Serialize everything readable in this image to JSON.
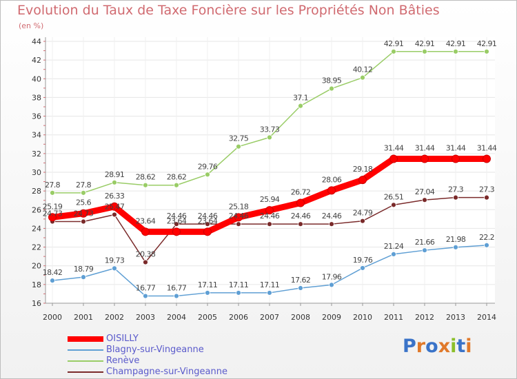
{
  "title": "Evolution du Taux de Taxe Foncière sur les Propriétés Non Bâties",
  "subtitle": "(en %)",
  "logo": {
    "text": "Proxiti",
    "letter_colors": [
      "#3a73c8",
      "#e0792a",
      "#3a73c8",
      "#e0792a",
      "#8bbf2a",
      "#3a73c8",
      "#e0792a"
    ]
  },
  "chart_data": {
    "type": "line",
    "x": [
      "2000",
      "2001",
      "2002",
      "2003",
      "2004",
      "2005",
      "2006",
      "2007",
      "2008",
      "2009",
      "2010",
      "2011",
      "2012",
      "2013",
      "2014"
    ],
    "ylim": [
      16,
      44
    ],
    "yticks": [
      16,
      18,
      20,
      22,
      24,
      26,
      28,
      30,
      32,
      34,
      36,
      38,
      40,
      42,
      44
    ],
    "grid": true,
    "legend_position": "bottom-left",
    "series": [
      {
        "name": "OISILLY",
        "color": "#ff0000",
        "values": [
          25.19,
          25.6,
          26.33,
          23.64,
          23.64,
          23.64,
          25.18,
          25.94,
          26.72,
          28.06,
          29.18,
          31.44,
          31.44,
          31.44,
          31.44
        ],
        "labels": [
          "25.19",
          "25.6",
          "26.33",
          "23.64",
          "23.64",
          "23.64",
          "25.18",
          "25.94",
          "26.72",
          "28.06",
          "29.18",
          "31.44",
          "31.44",
          "31.44",
          "31.44"
        ]
      },
      {
        "name": "Blagny-sur-Vingeanne",
        "color": "#5f9fd4",
        "values": [
          18.42,
          18.79,
          19.73,
          16.77,
          16.77,
          17.11,
          17.11,
          17.11,
          17.62,
          17.96,
          19.76,
          21.24,
          21.66,
          21.98,
          22.2
        ],
        "labels": [
          "18.42",
          "18.79",
          "19.73",
          "16.77",
          "16.77",
          "17.11",
          "17.11",
          "17.11",
          "17.62",
          "17.96",
          "19.76",
          "21.24",
          "21.66",
          "21.98",
          "22.2"
        ]
      },
      {
        "name": "Renève",
        "color": "#99cc66",
        "values": [
          27.8,
          27.8,
          28.91,
          28.62,
          28.62,
          29.76,
          32.75,
          33.73,
          37.1,
          38.95,
          40.12,
          42.91,
          42.91,
          42.91,
          42.91
        ],
        "labels": [
          "27.8",
          "27.8",
          "28.91",
          "28.62",
          "28.62",
          "29.76",
          "32.75",
          "33.73",
          "37.1",
          "38.95",
          "40.12",
          "42.91",
          "42.91",
          "42.91",
          "42.91"
        ]
      },
      {
        "name": "Champagne-sur-Vingeanne",
        "color": "#7a2a2a",
        "values": [
          24.73,
          24.73,
          25.47,
          20.38,
          24.46,
          24.46,
          24.46,
          24.46,
          24.46,
          24.46,
          24.79,
          26.51,
          27.04,
          27.3,
          27.3
        ],
        "labels": [
          "24.73",
          "24.73",
          "25.47",
          "20.38",
          "24.46",
          "24.46",
          "24.46",
          "24.46",
          "24.46",
          "24.46",
          "24.79",
          "26.51",
          "27.04",
          "27.3",
          "27.3"
        ]
      }
    ]
  }
}
